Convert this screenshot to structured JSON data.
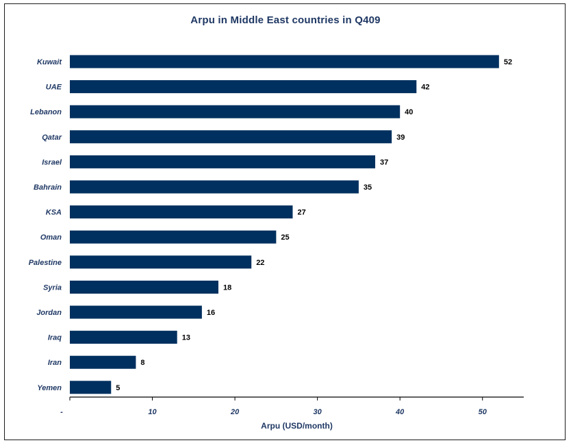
{
  "chart_data": {
    "type": "bar",
    "orientation": "horizontal",
    "title": "Arpu in Middle East countries in Q409",
    "xlabel": "Arpu (USD/month)",
    "ylabel": "",
    "categories": [
      "Kuwait",
      "UAE",
      "Lebanon",
      "Qatar",
      "Israel",
      "Bahrain",
      "KSA",
      "Oman",
      "Palestine",
      "Syria",
      "Jordan",
      "Iraq",
      "Iran",
      "Yemen"
    ],
    "values": [
      52,
      42,
      40,
      39,
      37,
      35,
      27,
      25,
      22,
      18,
      16,
      13,
      8,
      5
    ],
    "xlim": [
      0,
      55
    ],
    "x_ticks": [
      0,
      10,
      20,
      30,
      40,
      50
    ],
    "x_tick_labels": [
      "-",
      "10",
      "20",
      "30",
      "40",
      "50"
    ],
    "bar_color": "#00305f",
    "grid": false,
    "legend": "none",
    "data_labels": true
  }
}
